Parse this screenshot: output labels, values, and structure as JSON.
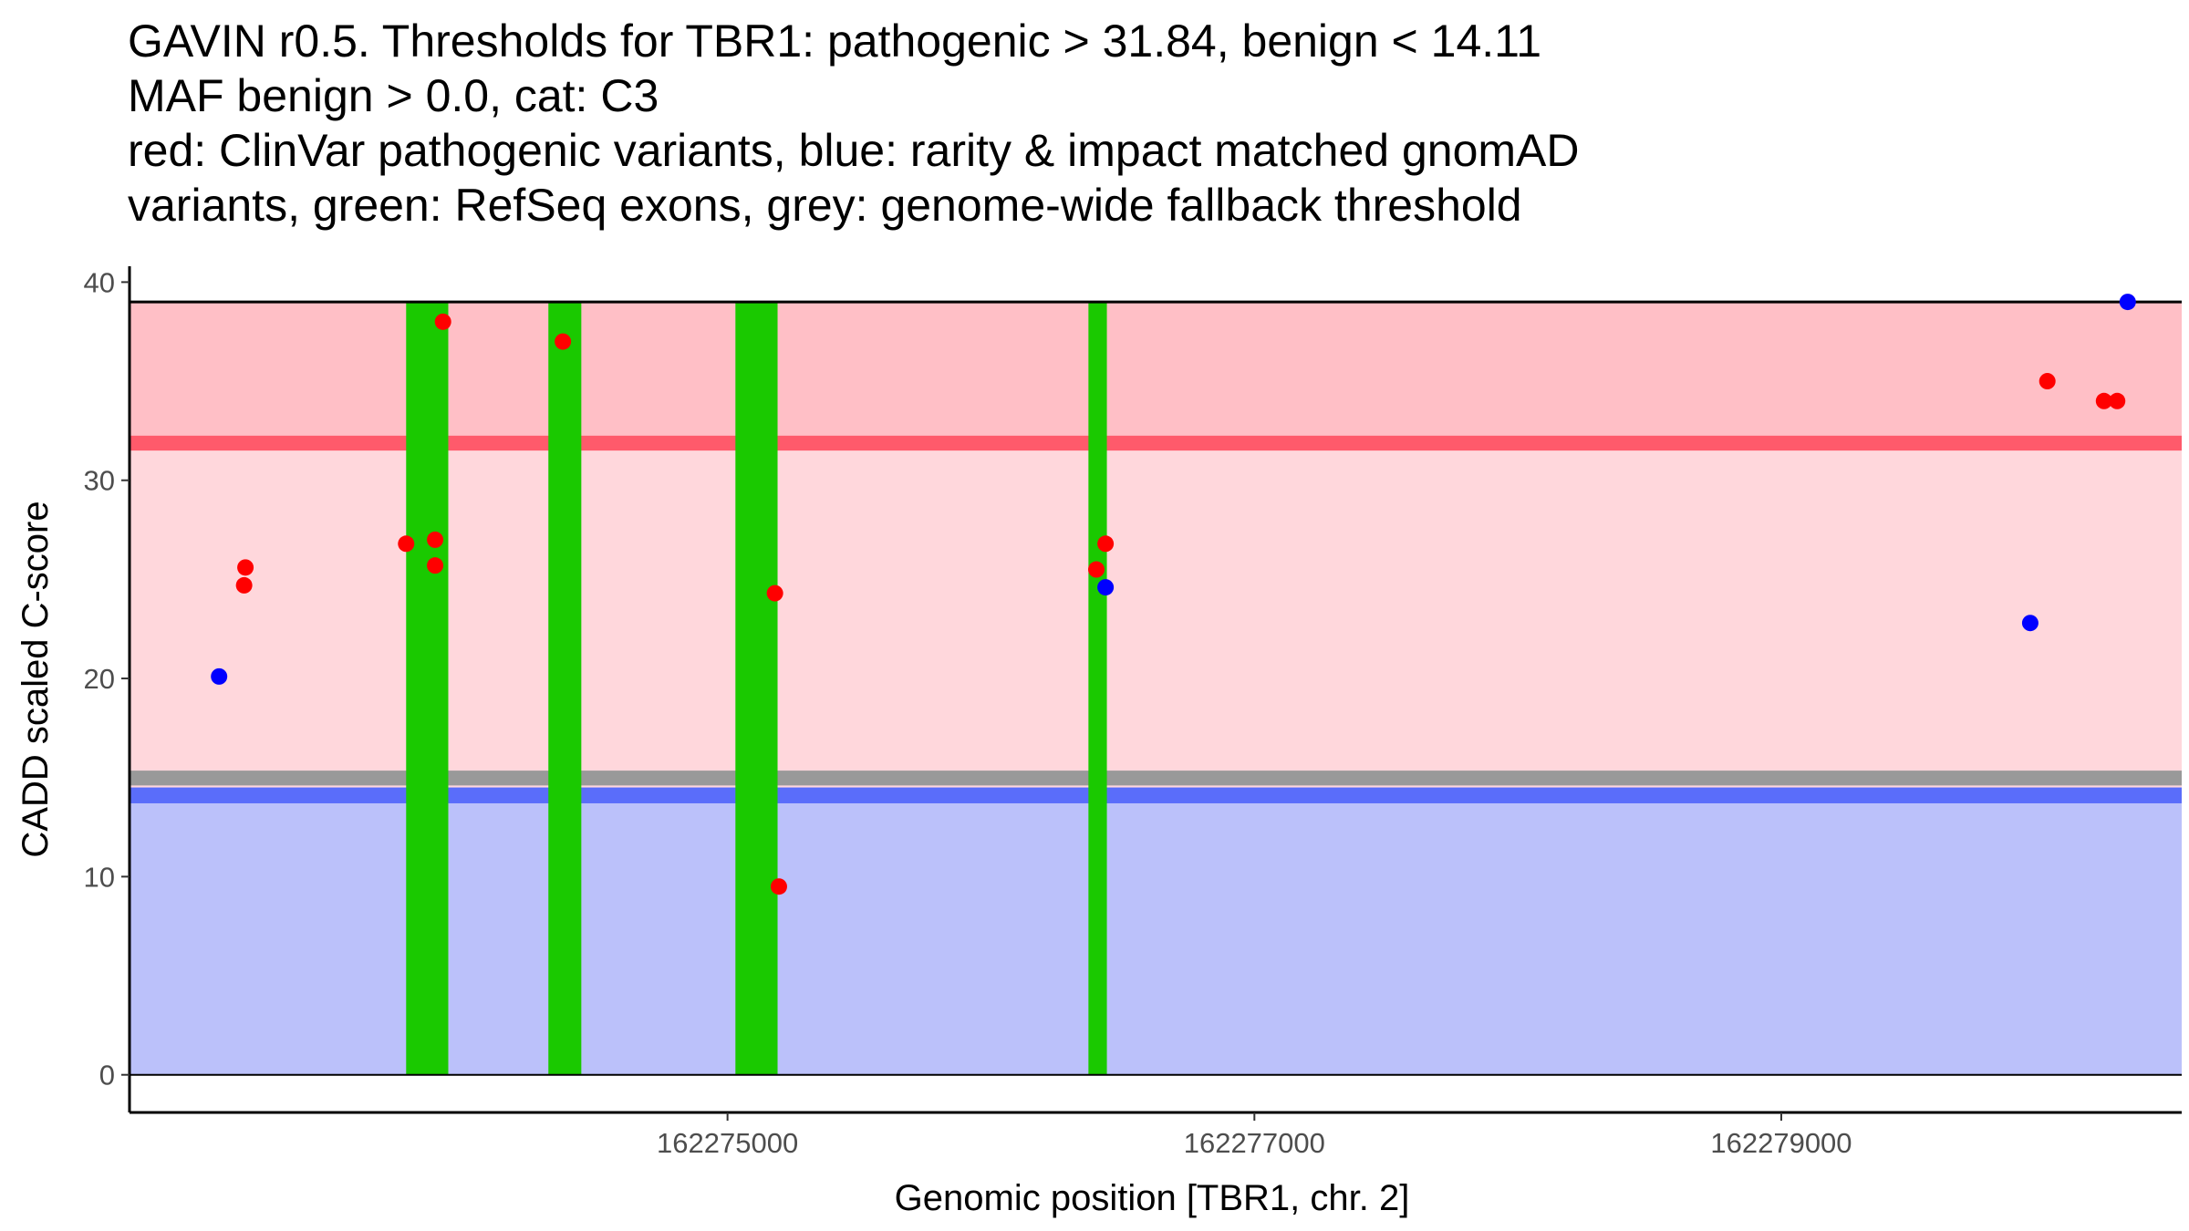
{
  "chart_data": {
    "type": "scatter",
    "title_lines": [
      "GAVIN r0.5. Thresholds for TBR1: pathogenic > 31.84, benign < 14.11",
      "MAF benign > 0.0, cat: C3",
      "red: ClinVar pathogenic variants, blue: rarity & impact matched gnomAD",
      "variants, green: RefSeq exons, grey: genome-wide fallback threshold"
    ],
    "xlabel": "Genomic position [TBR1, chr. 2]",
    "ylabel": "CADD scaled C-score",
    "xlim": [
      162272730,
      162280520
    ],
    "ylim": [
      -1.9,
      40.8
    ],
    "x_ticks": [
      {
        "value": 162275000,
        "label": "162275000"
      },
      {
        "value": 162277000,
        "label": "162277000"
      },
      {
        "value": 162279000,
        "label": "162279000"
      }
    ],
    "y_ticks": [
      {
        "value": 0,
        "label": "0"
      },
      {
        "value": 10,
        "label": "10"
      },
      {
        "value": 20,
        "label": "20"
      },
      {
        "value": 30,
        "label": "30"
      },
      {
        "value": 40,
        "label": "40"
      }
    ],
    "thresholds": {
      "pathogenic": 31.84,
      "benign": 14.11,
      "genome_wide_fallback": 15.0,
      "max_score": 39
    },
    "bands": [
      {
        "name": "pathogenic-band",
        "y0": 31.84,
        "y1": 39,
        "color": "#ffbfc6"
      },
      {
        "name": "uncertain-band",
        "y0": 14.11,
        "y1": 31.84,
        "color": "#ffd7dc"
      },
      {
        "name": "benign-band",
        "y0": 0,
        "y1": 14.11,
        "color": "#bbc1fa"
      }
    ],
    "threshold_lines": [
      {
        "name": "pathogenic-threshold-line",
        "y0": 31.5,
        "y1": 32.25,
        "color": "#ff5a6b"
      },
      {
        "name": "fallback-threshold-line",
        "y0": 14.6,
        "y1": 15.35,
        "color": "#999999"
      },
      {
        "name": "benign-threshold-line",
        "y0": 13.7,
        "y1": 14.5,
        "color": "#5a6dfa"
      }
    ],
    "exons": [
      {
        "x0": 162273780,
        "x1": 162273940
      },
      {
        "x0": 162274320,
        "x1": 162274445
      },
      {
        "x0": 162275030,
        "x1": 162275190
      },
      {
        "x0": 162276370,
        "x1": 162276440
      }
    ],
    "exon_color": "#1ac900",
    "exon_y_range": [
      0,
      39
    ],
    "series": [
      {
        "name": "ClinVar pathogenic",
        "color": "#ff0000",
        "points": [
          {
            "x": 162273170,
            "y": 25.6
          },
          {
            "x": 162273165,
            "y": 24.7
          },
          {
            "x": 162273780,
            "y": 26.8
          },
          {
            "x": 162273890,
            "y": 27.0
          },
          {
            "x": 162273890,
            "y": 25.7
          },
          {
            "x": 162273920,
            "y": 38.0
          },
          {
            "x": 162274375,
            "y": 37.0
          },
          {
            "x": 162275180,
            "y": 24.3
          },
          {
            "x": 162275195,
            "y": 9.5
          },
          {
            "x": 162276400,
            "y": 25.5
          },
          {
            "x": 162276435,
            "y": 26.8
          },
          {
            "x": 162280010,
            "y": 35.0
          },
          {
            "x": 162280225,
            "y": 34.0
          },
          {
            "x": 162280275,
            "y": 34.0
          }
        ]
      },
      {
        "name": "gnomAD matched",
        "color": "#0000ff",
        "points": [
          {
            "x": 162273070,
            "y": 20.1
          },
          {
            "x": 162276435,
            "y": 24.6
          },
          {
            "x": 162279945,
            "y": 22.8
          },
          {
            "x": 162280315,
            "y": 39.0
          }
        ]
      }
    ]
  }
}
